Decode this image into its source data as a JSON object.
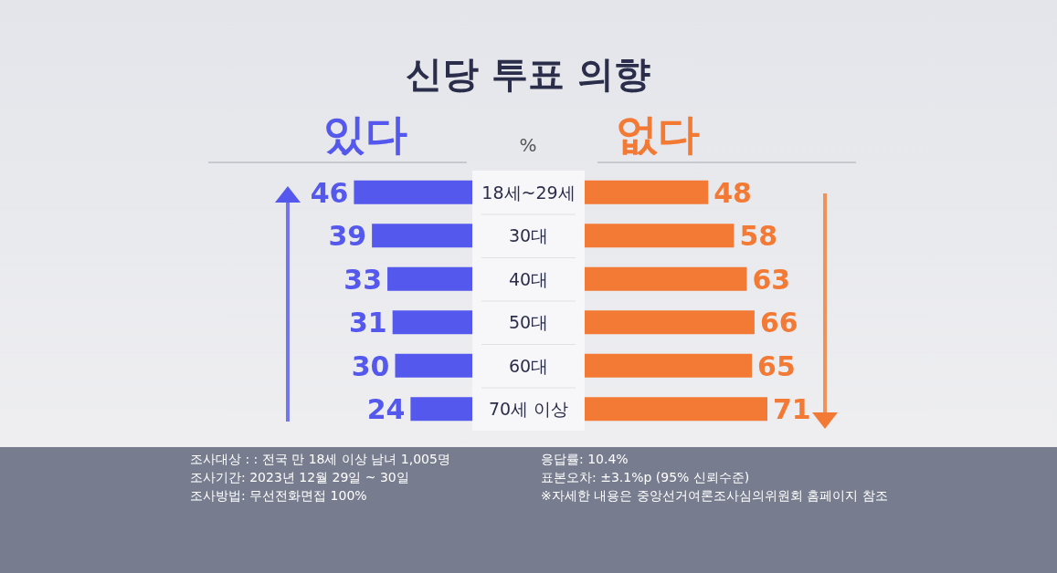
{
  "chart_data": [
    {
      "type": "bar",
      "orientation": "horizontal",
      "title": "신당 투표 의향",
      "xlabel": "%",
      "categories": [
        "18세~29세",
        "30대",
        "40대",
        "50대",
        "60대",
        "70세 이상"
      ],
      "series": [
        {
          "name": "있다",
          "color": "#5558ec",
          "values": [
            46,
            39,
            33,
            31,
            30,
            24
          ]
        }
      ],
      "data_labels": true,
      "annotations": [
        "조사대상 : : 전국 만 18세 이상 남녀 1,005명",
        "조사기간: 2023년 12월 29일 ~ 30일",
        "조사방법: 무선전화면접 100%",
        "응답률: 10.4%",
        "표본오차: ±3.1%p (95% 신뢰수준)",
        "※자세한 내용은 중앙선거여론조사심의위원회 홈페이지 참조"
      ]
    },
    {
      "type": "bar",
      "orientation": "horizontal",
      "series": [
        {
          "name": "없다",
          "color": "#f37a35",
          "values": [
            48,
            58,
            63,
            66,
            65,
            71
          ]
        }
      ],
      "data_labels": true
    }
  ]
}
